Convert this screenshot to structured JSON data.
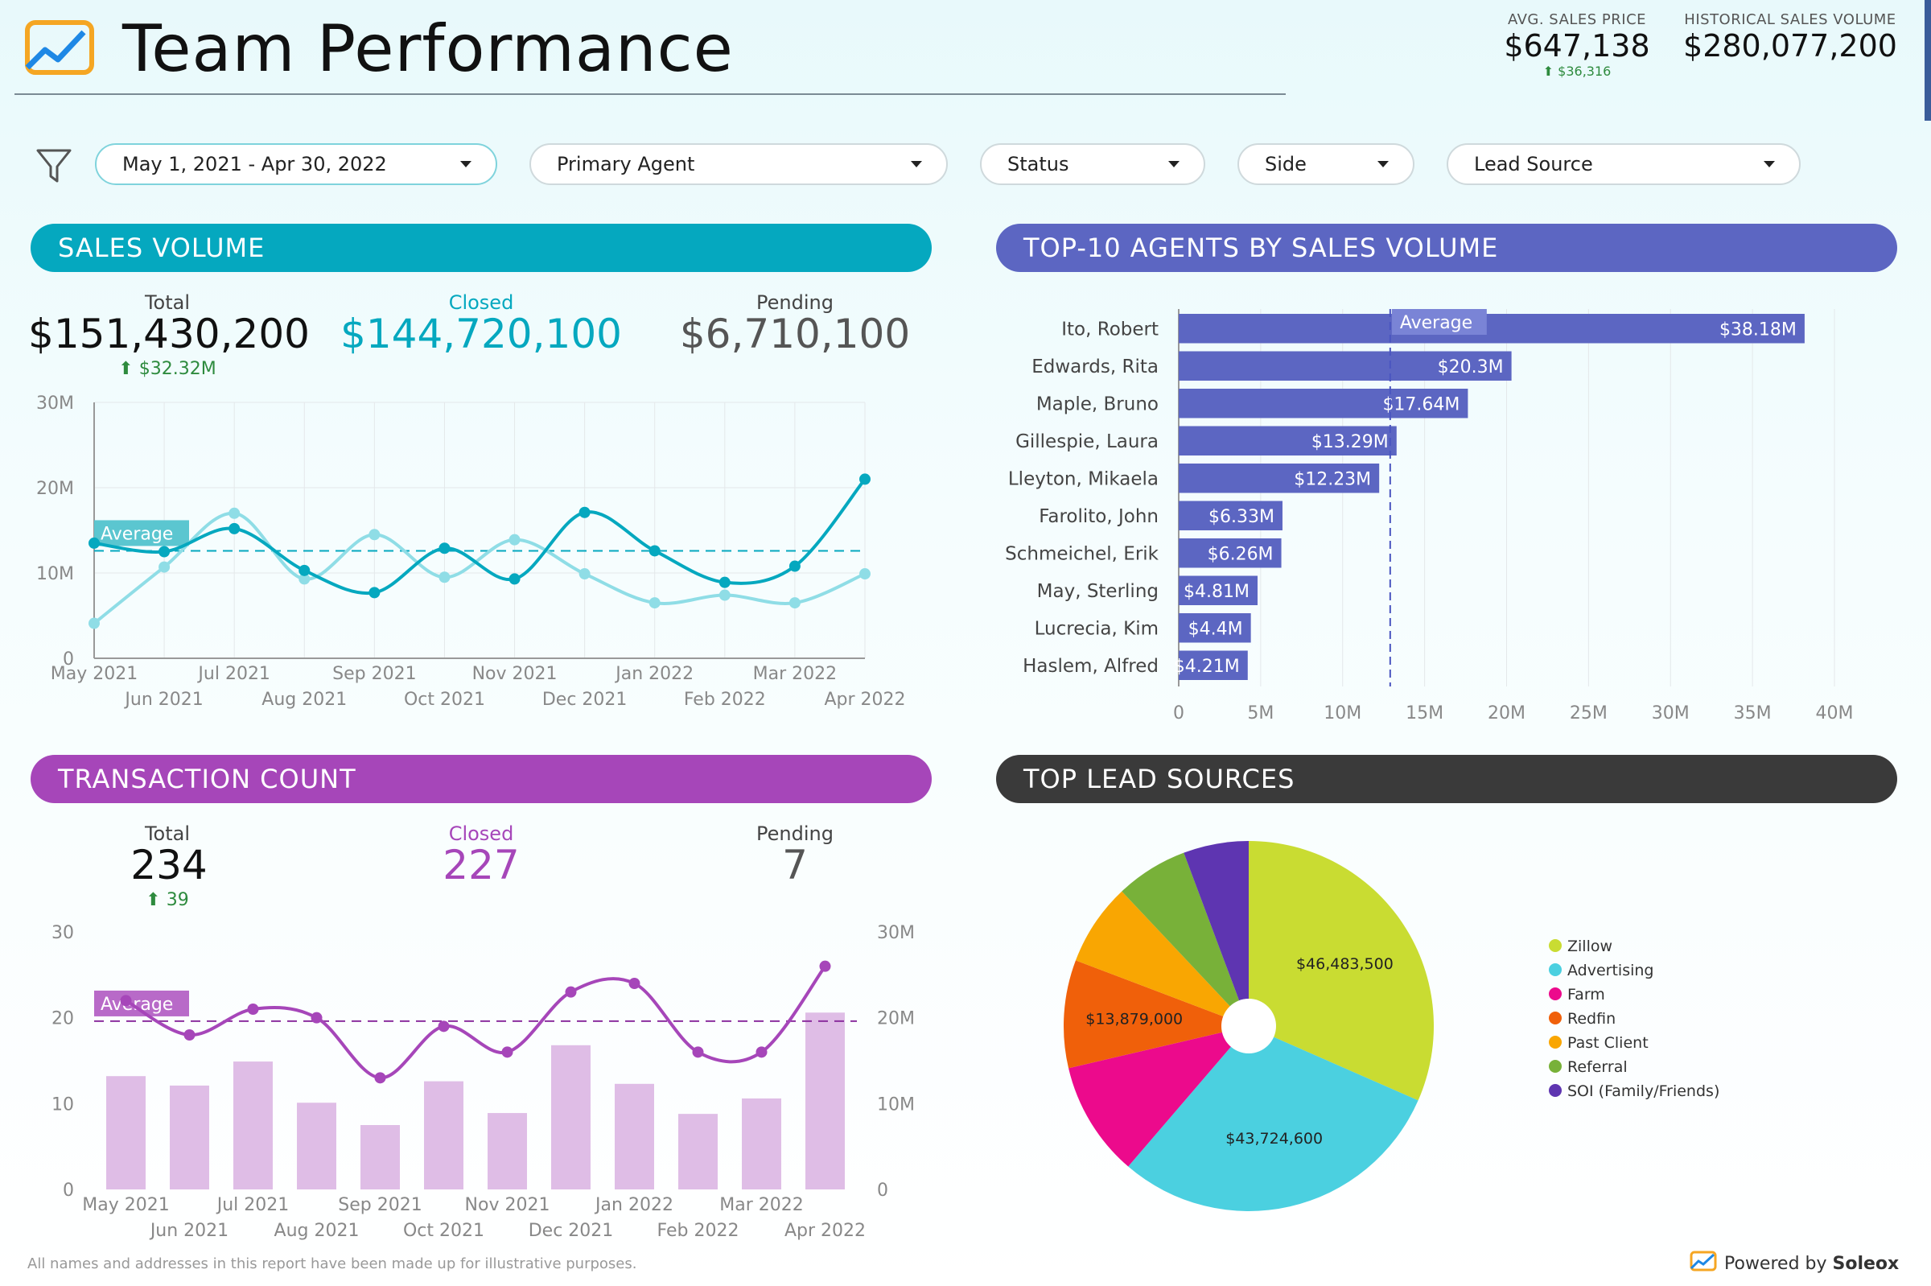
{
  "header": {
    "title": "Team Performance",
    "avg_sales_price_label": "AVG. SALES PRICE",
    "avg_sales_price_value": "$647,138",
    "avg_sales_price_delta": "$36,316",
    "historical_label": "HISTORICAL SALES VOLUME",
    "historical_value": "$280,077,200"
  },
  "filters": {
    "date_range": "May 1, 2021 - Apr 30, 2022",
    "primary_agent": "Primary Agent",
    "status": "Status",
    "side": "Side",
    "lead_source": "Lead Source"
  },
  "sales_volume": {
    "title": "SALES VOLUME",
    "total_label": "Total",
    "total_value": "$151,430,200",
    "total_delta": "$32.32M",
    "closed_label": "Closed",
    "closed_value": "$144,720,100",
    "pending_label": "Pending",
    "pending_value": "$6,710,100"
  },
  "transaction_count": {
    "title": "TRANSACTION COUNT",
    "total_label": "Total",
    "total_value": "234",
    "total_delta": "39",
    "closed_label": "Closed",
    "closed_value": "227",
    "pending_label": "Pending",
    "pending_value": "7"
  },
  "top_agents": {
    "title": "TOP-10 AGENTS BY SALES VOLUME"
  },
  "lead_sources": {
    "title": "TOP LEAD SOURCES"
  },
  "colors": {
    "teal": "#05a8bf",
    "light_teal": "#8fdde6",
    "purple": "#a646b9",
    "light_purple": "#dfbde6",
    "indigo": "#5c66c2",
    "dark": "#3a3a3a"
  },
  "chart_data": [
    {
      "type": "line",
      "title": "SALES VOLUME",
      "x": [
        "May 2021",
        "Jun 2021",
        "Jul 2021",
        "Aug 2021",
        "Sep 2021",
        "Oct 2021",
        "Nov 2021",
        "Dec 2021",
        "Jan 2022",
        "Feb 2022",
        "Mar 2022",
        "Apr 2022"
      ],
      "series": [
        {
          "values": [
            13.5,
            12.5,
            15.2,
            10.3,
            7.7,
            12.9,
            9.3,
            17.1,
            12.6,
            8.9,
            10.8,
            21.0
          ]
        },
        {
          "values": [
            4.1,
            10.7,
            17.0,
            9.3,
            14.5,
            9.5,
            13.9,
            9.9,
            6.5,
            7.4,
            6.5,
            9.9
          ]
        }
      ],
      "average": 12.6,
      "average_label": "Average",
      "y_ticks": [
        "0",
        "10M",
        "20M",
        "30M"
      ],
      "ylim": [
        0,
        30
      ]
    },
    {
      "type": "bar",
      "title": "TOP-10 AGENTS BY SALES VOLUME",
      "orientation": "horizontal",
      "categories": [
        "Ito, Robert",
        "Edwards, Rita",
        "Maple, Bruno",
        "Gillespie, Laura",
        "Lleyton, Mikaela",
        "Farolito, John",
        "Schmeichel, Erik",
        "May, Sterling",
        "Lucrecia, Kim",
        "Haslem, Alfred"
      ],
      "values": [
        38.18,
        20.3,
        17.64,
        13.29,
        12.23,
        6.33,
        6.26,
        4.81,
        4.4,
        4.21
      ],
      "value_labels": [
        "$38.18M",
        "$20.3M",
        "$17.64M",
        "$13.29M",
        "$12.23M",
        "$6.33M",
        "$6.26M",
        "$4.81M",
        "$4.4M",
        "$4.21M"
      ],
      "average": 12.9,
      "average_label": "Average",
      "x_ticks": [
        "0",
        "5M",
        "10M",
        "15M",
        "20M",
        "25M",
        "30M",
        "35M",
        "40M"
      ],
      "xlim": [
        0,
        40
      ]
    },
    {
      "type": "bar",
      "title": "TRANSACTION COUNT",
      "x": [
        "May 2021",
        "Jun 2021",
        "Jul 2021",
        "Aug 2021",
        "Sep 2021",
        "Oct 2021",
        "Nov 2021",
        "Dec 2021",
        "Jan 2022",
        "Feb 2022",
        "Mar 2022",
        "Apr 2022"
      ],
      "series": [
        {
          "values": [
            13.2,
            12.1,
            14.9,
            10.1,
            7.5,
            12.6,
            8.9,
            16.8,
            12.3,
            8.8,
            10.6,
            20.6
          ]
        },
        {
          "values": [
            22,
            18,
            21,
            20,
            13,
            19,
            16,
            23,
            24,
            16,
            16,
            26
          ],
          "type": "line"
        }
      ],
      "average": 19.6,
      "average_label": "Average",
      "y_ticks_left": [
        "0",
        "10",
        "20",
        "30"
      ],
      "y_ticks_right": [
        "0",
        "10M",
        "20M",
        "30M"
      ],
      "ylim": [
        0,
        30
      ]
    },
    {
      "type": "pie",
      "title": "TOP LEAD SOURCES",
      "labels": [
        "Zillow",
        "Advertising",
        "Farm",
        "Redfin",
        "Past Client",
        "Referral",
        "SOI (Family/Friends)"
      ],
      "values": [
        46483500,
        43724600,
        14800000,
        13879000,
        10600000,
        9300000,
        8400000
      ],
      "value_labels": [
        "$46,483,500",
        "$43,724,600",
        "",
        "$13,879,000",
        "",
        "",
        ""
      ],
      "colors": [
        "#c9dc32",
        "#4bd0e0",
        "#ec0a8c",
        "#f0600a",
        "#f9a602",
        "#78b139",
        "#5e35b1"
      ]
    }
  ]
}
